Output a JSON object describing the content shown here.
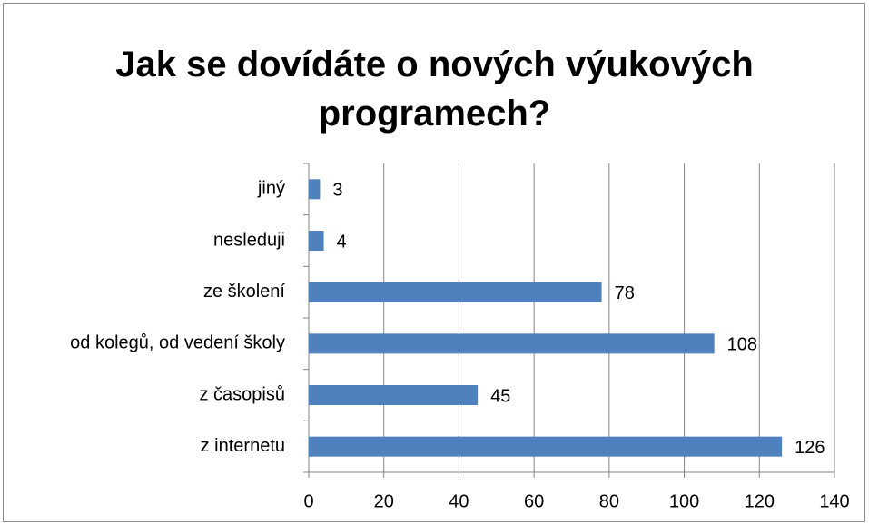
{
  "chart_data": {
    "type": "bar",
    "orientation": "horizontal",
    "title": "Jak se dovídáte o nových výukových programech?",
    "categories": [
      "jiný",
      "nesleduji",
      "ze školení",
      "od kolegů, od vedení školy",
      "z časopisů",
      "z internetu"
    ],
    "values": [
      3,
      4,
      78,
      108,
      45,
      126
    ],
    "color": "#4f81bd",
    "xlim": [
      0,
      140
    ],
    "xticks": [
      0,
      20,
      40,
      60,
      80,
      100,
      120,
      140
    ],
    "grid": true
  }
}
